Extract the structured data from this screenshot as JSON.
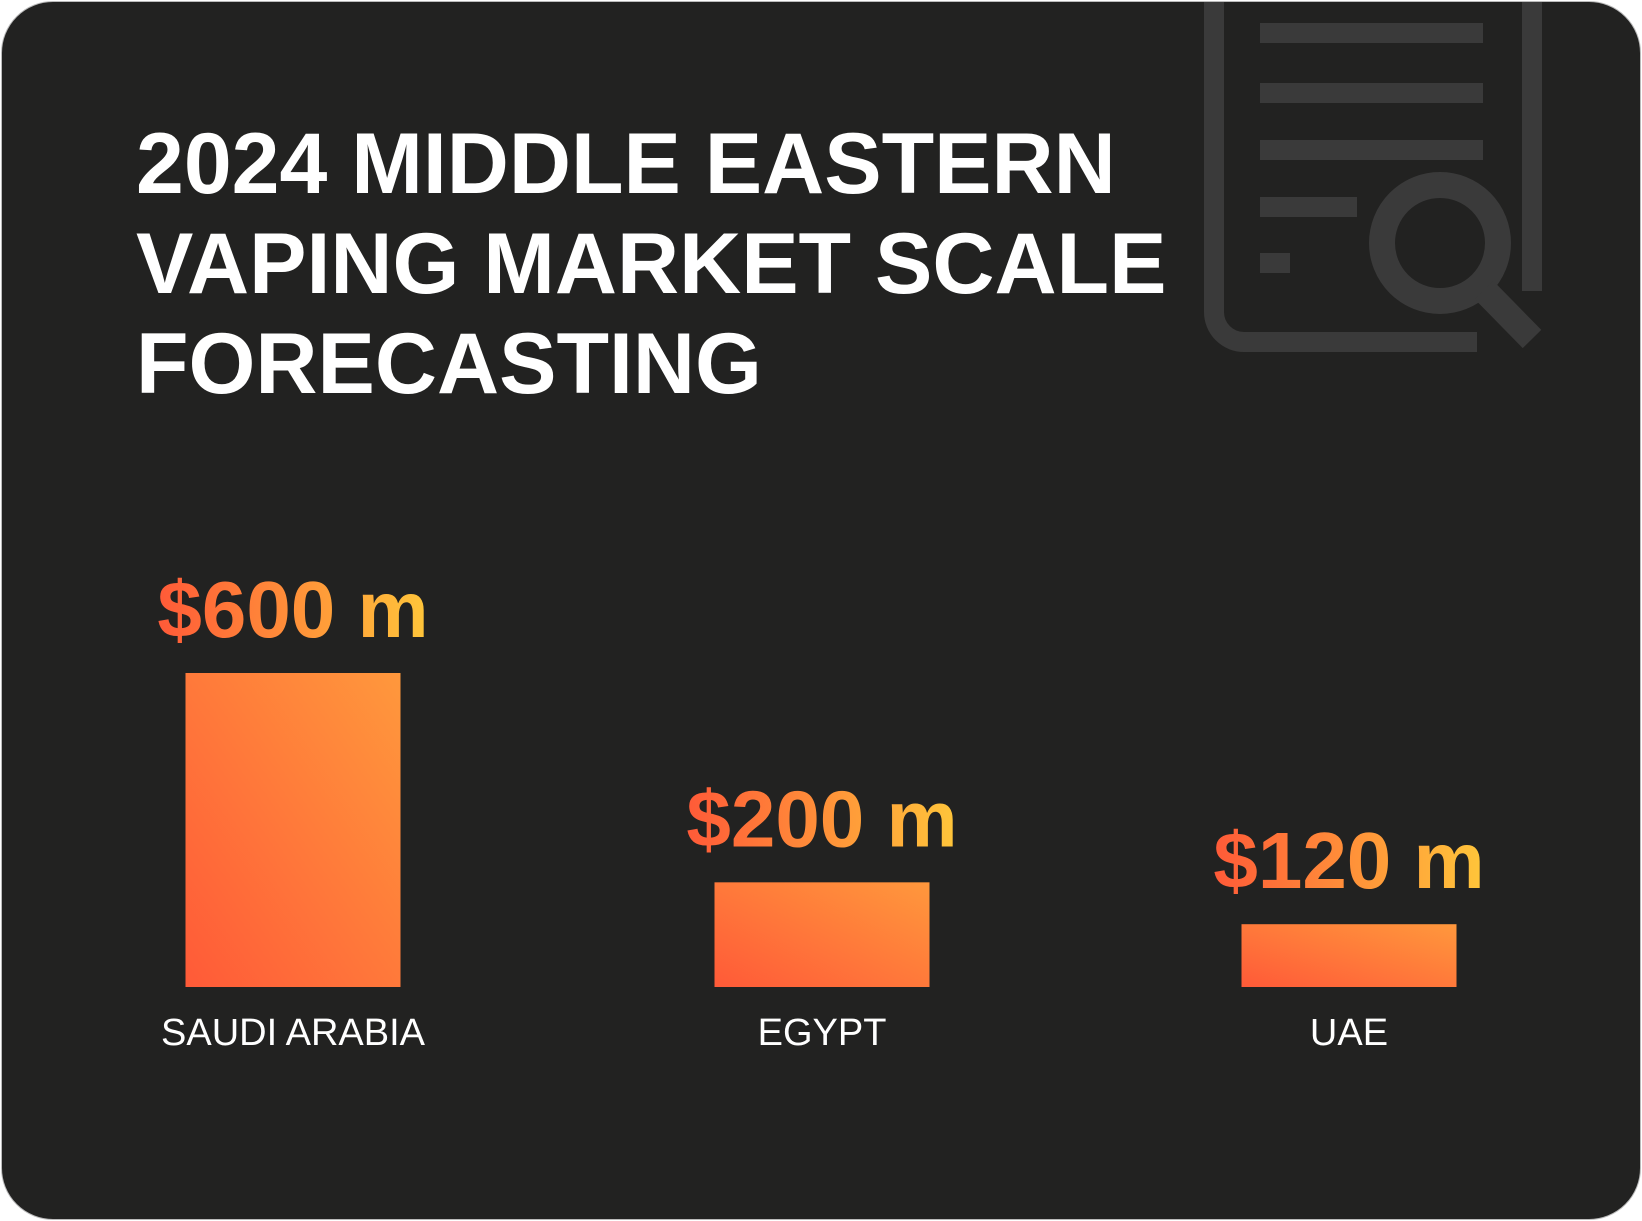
{
  "chart_data": {
    "type": "bar",
    "title": "2024 MIDDLE EASTERN VAPING MARKET SCALE FORECASTING",
    "categories": [
      "SAUDI ARABIA",
      "EGYPT",
      "UAE"
    ],
    "values": [
      600,
      200,
      120
    ],
    "value_labels": [
      "$600 m",
      "$200 m",
      "$120 m"
    ],
    "color": "#ff6a36"
  }
}
